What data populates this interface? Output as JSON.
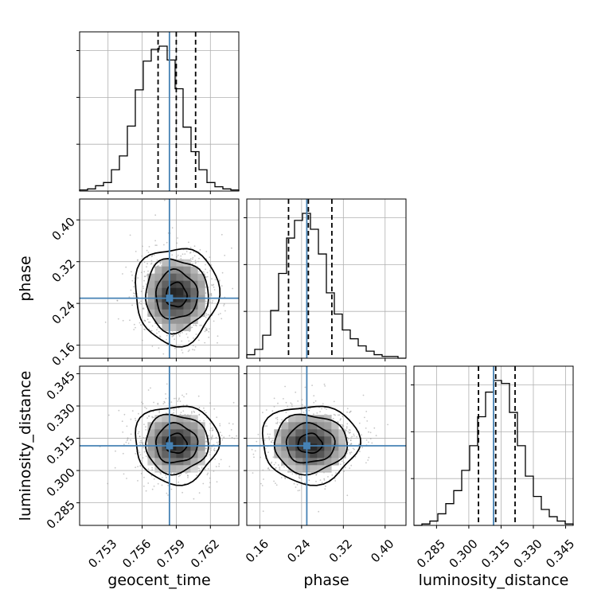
{
  "chart_data": {
    "type": "corner",
    "parameters": [
      "geocent_time",
      "phase",
      "luminosity_distance"
    ],
    "ranges": [
      [
        0.7505,
        0.7645
      ],
      [
        0.135,
        0.44
      ],
      [
        0.2745,
        0.3485
      ]
    ],
    "ticks": [
      [
        0.753,
        0.756,
        0.759,
        0.762
      ],
      [
        0.16,
        0.24,
        0.32,
        0.4
      ],
      [
        0.285,
        0.3,
        0.315,
        0.33,
        0.345
      ]
    ],
    "tick_labels": [
      [
        "0.753",
        "0.756",
        "0.759",
        "0.762"
      ],
      [
        "0.16",
        "0.24",
        "0.32",
        "0.40"
      ],
      [
        "0.285",
        "0.300",
        "0.315",
        "0.330",
        "0.345"
      ]
    ],
    "truths": [
      0.7584,
      0.25,
      0.3115
    ],
    "truth_color": "#4682b4",
    "quantiles_16_50_84": [
      [
        0.7574,
        0.759,
        0.7607
      ],
      [
        0.215,
        0.253,
        0.298
      ],
      [
        0.3045,
        0.3125,
        0.3215
      ]
    ],
    "histograms": [
      {
        "param": "geocent_time",
        "edges_start": 0.7505,
        "bin_width": 0.0007,
        "counts": [
          1,
          2,
          5,
          8,
          20,
          33,
          61,
          95,
          122,
          133,
          136,
          123,
          96,
          60,
          37,
          20,
          8,
          4,
          2,
          1
        ]
      },
      {
        "param": "phase",
        "edges_start": 0.135,
        "bin_width": 0.01525,
        "counts": [
          2,
          5,
          13,
          27,
          48,
          68,
          78,
          82,
          73,
          59,
          37,
          25,
          16,
          11,
          7,
          4,
          2,
          1,
          1,
          0
        ]
      },
      {
        "param": "luminosity_distance",
        "edges_start": 0.2745,
        "bin_width": 0.0037,
        "counts": [
          0,
          1,
          3,
          8,
          15,
          24,
          38,
          55,
          75,
          92,
          100,
          98,
          78,
          55,
          34,
          20,
          11,
          6,
          3,
          1
        ]
      }
    ],
    "contour_panels": [
      {
        "x_param": "geocent_time",
        "y_param": "phase",
        "center": [
          0.759,
          0.256
        ],
        "sigma": [
          0.0017,
          0.043
        ]
      },
      {
        "x_param": "geocent_time",
        "y_param": "luminosity_distance",
        "center": [
          0.759,
          0.3125
        ],
        "sigma": [
          0.0017,
          0.0084
        ]
      },
      {
        "x_param": "phase",
        "y_param": "luminosity_distance",
        "center": [
          0.256,
          0.3125
        ],
        "sigma": [
          0.043,
          0.0084
        ]
      }
    ],
    "contour_levels_sigma": [
      0.5,
      1.0,
      1.5,
      2.0
    ],
    "grid": true
  }
}
